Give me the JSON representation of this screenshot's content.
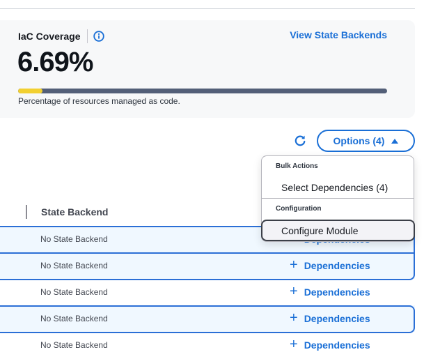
{
  "coverage": {
    "title": "IaC Coverage",
    "info_icon": "info-icon",
    "view_link": "View State Backends",
    "value": "6.69%",
    "progress_percent": 6.69,
    "caption": "Percentage of resources managed as code.",
    "colors": {
      "fill": "#f2d031",
      "track": "#535f78",
      "accent": "#1a6fd6"
    }
  },
  "toolbar": {
    "refresh_icon": "refresh-icon",
    "options_label": "Options (4)",
    "options_icon": "caret-up-icon"
  },
  "dropdown": {
    "groups": [
      {
        "label": "Bulk Actions",
        "items": [
          {
            "label": "Select Dependencies (4)"
          }
        ]
      },
      {
        "label": "Configuration",
        "items": [
          {
            "label": "Configure Module",
            "focused": true
          }
        ]
      }
    ]
  },
  "table": {
    "columns": [
      {
        "label": "State Backend"
      }
    ],
    "rows": [
      {
        "state_backend": "No State Backend",
        "action": "Dependencies",
        "selected": true
      },
      {
        "state_backend": "No State Backend",
        "action": "Dependencies",
        "selected": true
      },
      {
        "state_backend": "No State Backend",
        "action": "Dependencies",
        "selected": false
      },
      {
        "state_backend": "No State Backend",
        "action": "Dependencies",
        "selected": true
      },
      {
        "state_backend": "No State Backend",
        "action": "Dependencies",
        "selected": false
      }
    ],
    "action_icon": "plus-icon"
  }
}
